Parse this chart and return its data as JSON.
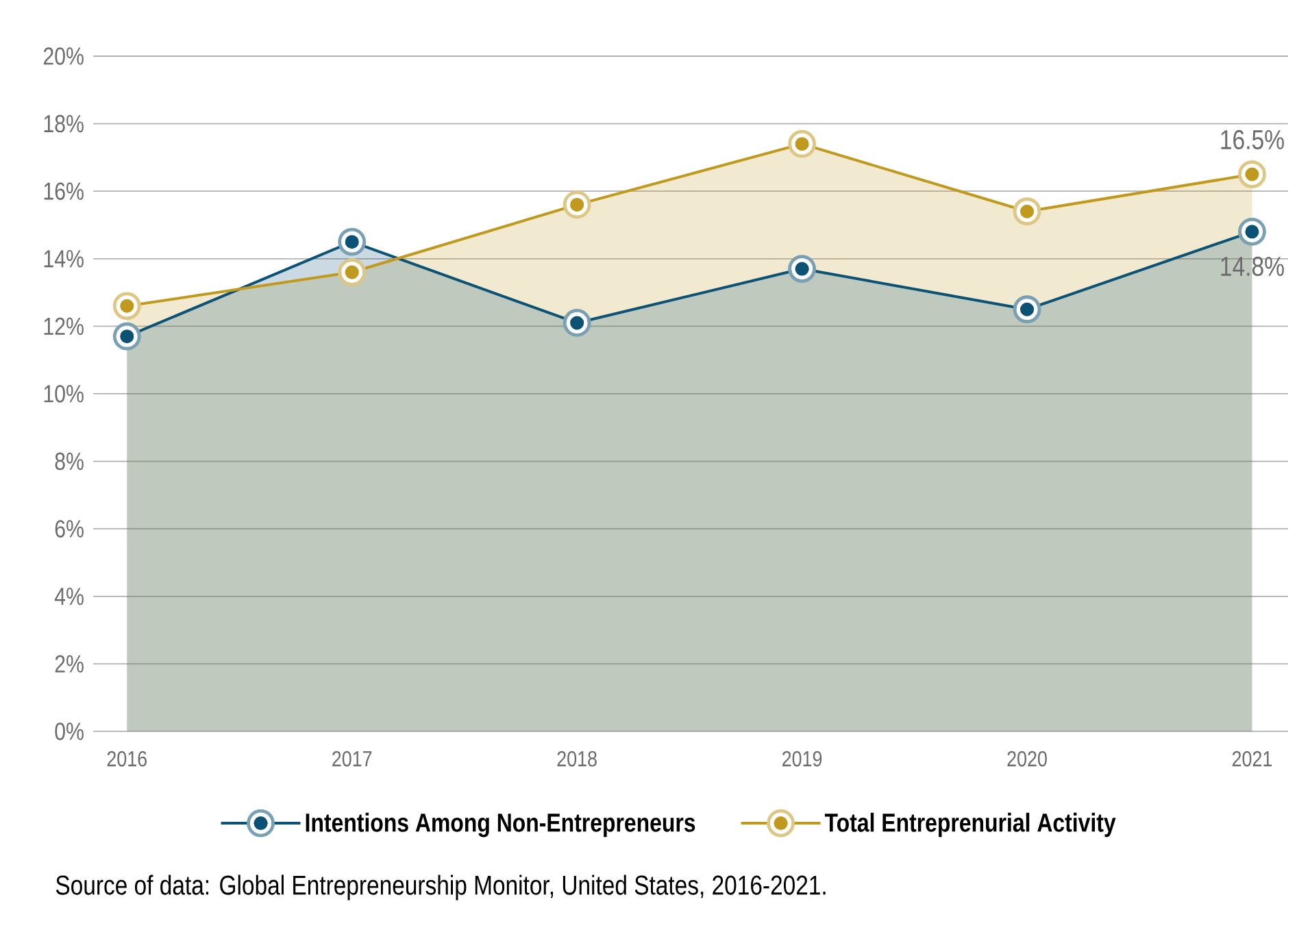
{
  "chart_data": {
    "type": "area",
    "categories": [
      "2016",
      "2017",
      "2018",
      "2019",
      "2020",
      "2021"
    ],
    "series": [
      {
        "name": "Intentions Among Non-Entrepreneurs",
        "color": "#0b5274",
        "values": [
          11.7,
          14.5,
          12.1,
          13.7,
          12.5,
          14.8
        ],
        "value_labels": [
          null,
          null,
          null,
          null,
          null,
          "14.8%"
        ]
      },
      {
        "name": "Total Entreprenurial Activity",
        "color": "#c09a1f",
        "values": [
          12.6,
          13.6,
          15.6,
          17.4,
          15.4,
          16.5
        ],
        "value_labels": [
          null,
          null,
          null,
          null,
          null,
          "16.5%"
        ]
      }
    ],
    "ylim": [
      0,
      20
    ],
    "yticks": [
      {
        "value": 0,
        "label": "0%"
      },
      {
        "value": 2,
        "label": "2%"
      },
      {
        "value": 4,
        "label": "4%"
      },
      {
        "value": 6,
        "label": "6%"
      },
      {
        "value": 8,
        "label": "8%"
      },
      {
        "value": 10,
        "label": "10%"
      },
      {
        "value": 12,
        "label": "12%"
      },
      {
        "value": 14,
        "label": "14%"
      },
      {
        "value": 16,
        "label": "16%"
      },
      {
        "value": 18,
        "label": "18%"
      },
      {
        "value": 20,
        "label": "20%"
      }
    ],
    "grid": "y",
    "legend": "bottom",
    "marker": "circle",
    "annotations": [
      "Source of data: Global Entrepreneurship Monitor, United States, 2016-2021."
    ]
  }
}
